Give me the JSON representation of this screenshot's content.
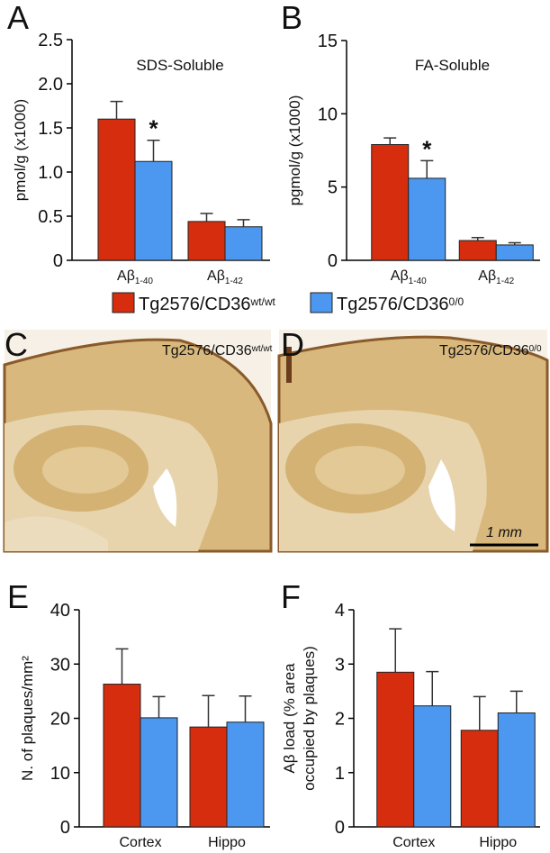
{
  "chart_data": [
    {
      "type": "bar",
      "panel": "A",
      "title": "SDS-Soluble",
      "y_label": "pmol/g (x1000)",
      "categories": [
        [
          "Aβ",
          "1-40"
        ],
        [
          "Aβ",
          "1-42"
        ]
      ],
      "series": [
        {
          "name": [
            "Tg2576/CD36",
            "wt/wt"
          ],
          "color": "#d62d0f",
          "values": [
            1.6,
            0.44
          ],
          "errors": [
            0.2,
            0.09
          ]
        },
        {
          "name": [
            "Tg2576/CD36",
            "0/0"
          ],
          "color": "#4c97f0",
          "values": [
            1.12,
            0.38
          ],
          "errors": [
            0.24,
            0.08
          ]
        }
      ],
      "ylim": [
        0,
        2.5
      ],
      "yticks": [
        0,
        0.5,
        {
          "value": 1,
          "label": "1.0"
        },
        1.5,
        {
          "value": 2,
          "label": "2.0"
        },
        2.5
      ],
      "annotation": "*"
    },
    {
      "type": "bar",
      "panel": "B",
      "title": "FA-Soluble",
      "y_label": "pgmol/g (x1000)",
      "categories": [
        [
          "Aβ",
          "1-40"
        ],
        [
          "Aβ",
          "1-42"
        ]
      ],
      "series": [
        {
          "color": "#d62d0f",
          "values": [
            7.9,
            1.35
          ],
          "errors": [
            0.45,
            0.2
          ]
        },
        {
          "color": "#4c97f0",
          "values": [
            5.6,
            1.05
          ],
          "errors": [
            1.2,
            0.15
          ]
        }
      ],
      "ylim": [
        0,
        15
      ],
      "yticks": [
        0,
        5,
        10,
        15
      ],
      "annotation": "*"
    },
    {
      "type": "bar",
      "panel": "E",
      "y_label": [
        "N. of plaques/mm²"
      ],
      "categories": [
        "Cortex",
        "Hippo"
      ],
      "series": [
        {
          "color": "#d62d0f",
          "values": [
            26.3,
            18.4
          ],
          "errors": [
            6.5,
            5.8
          ]
        },
        {
          "color": "#4c97f0",
          "values": [
            20.1,
            19.3
          ],
          "errors": [
            3.9,
            4.8
          ]
        }
      ],
      "ylim": [
        0,
        40
      ],
      "yticks": [
        0,
        10,
        20,
        30,
        40
      ]
    },
    {
      "type": "bar",
      "panel": "F",
      "y_label": [
        "Aβ load (% area",
        "occupied by plaques)"
      ],
      "categories": [
        "Cortex",
        "Hippo"
      ],
      "series": [
        {
          "color": "#d62d0f",
          "values": [
            2.85,
            1.78
          ],
          "errors": [
            0.8,
            0.62
          ]
        },
        {
          "color": "#4c97f0",
          "values": [
            2.23,
            2.1
          ],
          "errors": [
            0.63,
            0.4
          ]
        }
      ],
      "ylim": [
        0,
        4
      ],
      "yticks": [
        0,
        1,
        2,
        3,
        4
      ]
    }
  ],
  "images": [
    {
      "panel": "C",
      "caption": [
        "Tg2576/CD36",
        "wt/wt"
      ]
    },
    {
      "panel": "D",
      "caption": [
        "Tg2576/CD36",
        "0/0"
      ],
      "scale_bar": "1 mm"
    }
  ]
}
